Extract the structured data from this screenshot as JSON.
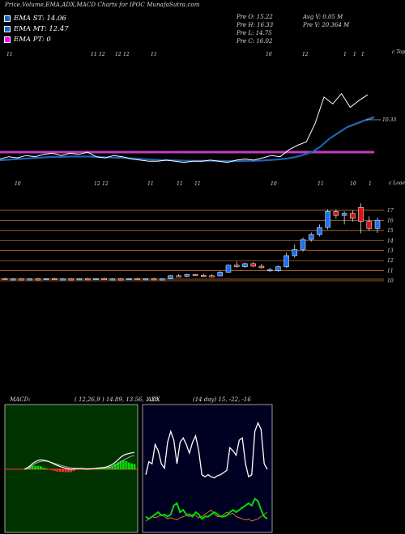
{
  "header": {
    "title": "Price,Volume,EMA,ADX,MACD Charts for IPOC MunafaSutra.com"
  },
  "legend": [
    {
      "label": "EMA ST: 14.06",
      "color": "#1565c0"
    },
    {
      "label": "EMA MT: 12.47",
      "color": "#1565c0"
    },
    {
      "label": "EMA PT: 0",
      "color": "#ff00ff"
    }
  ],
  "stats": {
    "prev_open": "Pre  O: 15.22",
    "prev_high": "Pre  H: 16.33",
    "prev_low": "Pre  L: 14.75",
    "prev_close": "Pre  C: 16.02",
    "avg_volume": "Avg V: 0.05 M",
    "prev_volume": "Pre  V: 20.364  M"
  },
  "chart_data": [
    {
      "type": "line",
      "name": "price-ema-panel",
      "x_tick_labels": [
        "11",
        "11",
        "12",
        "12",
        "12",
        "11",
        "10",
        "12",
        "1",
        "1",
        "1"
      ],
      "right_label": "c Topa",
      "annotation": "10.33",
      "series": [
        {
          "name": "",
          "color": "#ffffff",
          "values": [
            10.4,
            10.6,
            10.5,
            10.7,
            10.6,
            10.8,
            10.9,
            10.7,
            10.9,
            10.8,
            11.0,
            10.6,
            10.5,
            10.7,
            10.6,
            10.4,
            10.3,
            10.2,
            10.2,
            10.3,
            10.2,
            10.1,
            10.2,
            10.2,
            10.3,
            10.2,
            10.1,
            10.3,
            10.4,
            10.3,
            10.5,
            10.7,
            10.6,
            11.2,
            11.6,
            11.9,
            13.5,
            15.8,
            15.2,
            16.1,
            14.9,
            15.5,
            16.0
          ]
        },
        {
          "name": "EMA ST",
          "color": "#1565c0",
          "values": [
            10.3,
            10.35,
            10.4,
            10.45,
            10.5,
            10.55,
            10.6,
            10.6,
            10.62,
            10.62,
            10.62,
            10.58,
            10.55,
            10.52,
            10.5,
            10.45,
            10.4,
            10.35,
            10.32,
            10.3,
            10.28,
            10.25,
            10.25,
            10.25,
            10.25,
            10.24,
            10.23,
            10.24,
            10.25,
            10.26,
            10.3,
            10.36,
            10.42,
            10.55,
            10.75,
            11.0,
            11.5,
            12.2,
            12.7,
            13.2,
            13.5,
            13.8,
            14.06
          ]
        }
      ],
      "horizontal_line": {
        "label": "EMA PT",
        "value": 11.0,
        "color": "#c040c0"
      }
    },
    {
      "type": "candlestick",
      "name": "price-candles",
      "x_tick_labels": [
        "10",
        "12",
        "12",
        "11",
        "11",
        "11",
        "10",
        "11",
        "10",
        "1"
      ],
      "right_label": "c Loaena",
      "y_ticks": [
        17,
        16,
        15,
        14,
        13,
        12,
        11,
        10
      ],
      "candles": [
        {
          "o": 10.22,
          "h": 10.3,
          "l": 10.1,
          "c": 10.18,
          "up": false
        },
        {
          "o": 10.18,
          "h": 10.25,
          "l": 10.1,
          "c": 10.2,
          "up": true
        },
        {
          "o": 10.2,
          "h": 10.26,
          "l": 10.12,
          "c": 10.15,
          "up": false
        },
        {
          "o": 10.15,
          "h": 10.25,
          "l": 10.1,
          "c": 10.2,
          "up": true
        },
        {
          "o": 10.2,
          "h": 10.28,
          "l": 10.12,
          "c": 10.17,
          "up": false
        },
        {
          "o": 10.17,
          "h": 10.25,
          "l": 10.12,
          "c": 10.22,
          "up": true
        },
        {
          "o": 10.22,
          "h": 10.3,
          "l": 10.15,
          "c": 10.18,
          "up": false
        },
        {
          "o": 10.18,
          "h": 10.26,
          "l": 10.12,
          "c": 10.2,
          "up": true
        },
        {
          "o": 10.2,
          "h": 10.28,
          "l": 10.14,
          "c": 10.17,
          "up": false
        },
        {
          "o": 10.17,
          "h": 10.24,
          "l": 10.1,
          "c": 10.21,
          "up": true
        },
        {
          "o": 10.21,
          "h": 10.3,
          "l": 10.15,
          "c": 10.17,
          "up": false
        },
        {
          "o": 10.17,
          "h": 10.26,
          "l": 10.12,
          "c": 10.22,
          "up": true
        },
        {
          "o": 10.22,
          "h": 10.3,
          "l": 10.14,
          "c": 10.18,
          "up": false
        },
        {
          "o": 10.18,
          "h": 10.26,
          "l": 10.12,
          "c": 10.2,
          "up": true
        },
        {
          "o": 10.2,
          "h": 10.28,
          "l": 10.15,
          "c": 10.17,
          "up": false
        },
        {
          "o": 10.17,
          "h": 10.24,
          "l": 10.1,
          "c": 10.22,
          "up": true
        },
        {
          "o": 10.22,
          "h": 10.3,
          "l": 10.15,
          "c": 10.18,
          "up": false
        },
        {
          "o": 10.18,
          "h": 10.26,
          "l": 10.12,
          "c": 10.21,
          "up": true
        },
        {
          "o": 10.21,
          "h": 10.3,
          "l": 10.14,
          "c": 10.17,
          "up": false
        },
        {
          "o": 10.17,
          "h": 10.25,
          "l": 10.1,
          "c": 10.2,
          "up": true
        },
        {
          "o": 10.2,
          "h": 10.55,
          "l": 10.15,
          "c": 10.5,
          "up": true
        },
        {
          "o": 10.5,
          "h": 10.65,
          "l": 10.4,
          "c": 10.45,
          "up": false
        },
        {
          "o": 10.45,
          "h": 10.7,
          "l": 10.35,
          "c": 10.62,
          "up": true
        },
        {
          "o": 10.62,
          "h": 10.7,
          "l": 10.5,
          "c": 10.55,
          "up": false
        },
        {
          "o": 10.55,
          "h": 10.7,
          "l": 10.45,
          "c": 10.5,
          "up": false
        },
        {
          "o": 10.5,
          "h": 10.65,
          "l": 10.4,
          "c": 10.48,
          "up": false
        },
        {
          "o": 10.48,
          "h": 10.95,
          "l": 10.45,
          "c": 10.85,
          "up": true
        },
        {
          "o": 10.85,
          "h": 11.6,
          "l": 10.8,
          "c": 11.55,
          "up": true
        },
        {
          "o": 11.55,
          "h": 11.9,
          "l": 11.3,
          "c": 11.4,
          "up": false
        },
        {
          "o": 11.4,
          "h": 11.8,
          "l": 11.3,
          "c": 11.7,
          "up": true
        },
        {
          "o": 11.7,
          "h": 11.85,
          "l": 11.35,
          "c": 11.45,
          "up": false
        },
        {
          "o": 11.45,
          "h": 11.7,
          "l": 11.2,
          "c": 11.3,
          "up": false
        },
        {
          "o": 11.1,
          "h": 11.3,
          "l": 10.9,
          "c": 11.0,
          "up": true
        },
        {
          "o": 11.0,
          "h": 11.5,
          "l": 10.9,
          "c": 11.4,
          "up": true
        },
        {
          "o": 11.4,
          "h": 12.8,
          "l": 11.3,
          "c": 12.5,
          "up": true
        },
        {
          "o": 12.5,
          "h": 13.6,
          "l": 12.3,
          "c": 13.1,
          "up": true
        },
        {
          "o": 13.1,
          "h": 14.3,
          "l": 12.9,
          "c": 14.1,
          "up": true
        },
        {
          "o": 14.1,
          "h": 14.8,
          "l": 13.9,
          "c": 14.6,
          "up": true
        },
        {
          "o": 14.6,
          "h": 15.6,
          "l": 14.4,
          "c": 15.3,
          "up": true
        },
        {
          "o": 15.3,
          "h": 17.1,
          "l": 15.1,
          "c": 16.9,
          "up": true
        },
        {
          "o": 16.9,
          "h": 17.1,
          "l": 16.2,
          "c": 16.5,
          "up": false
        },
        {
          "o": 16.5,
          "h": 16.9,
          "l": 15.6,
          "c": 16.7,
          "up": true
        },
        {
          "o": 16.7,
          "h": 17.0,
          "l": 15.9,
          "c": 16.2,
          "up": false
        },
        {
          "o": 17.3,
          "h": 17.7,
          "l": 14.7,
          "c": 15.9,
          "up": false
        },
        {
          "o": 15.9,
          "h": 16.4,
          "l": 15.0,
          "c": 15.2,
          "up": false
        },
        {
          "o": 15.2,
          "h": 16.3,
          "l": 14.75,
          "c": 16.02,
          "up": true
        }
      ]
    },
    {
      "type": "line",
      "name": "macd-panel",
      "title": "MACD:",
      "params": "( 12,26,9 ) 14.89,  13.56,  1.33",
      "series": [
        {
          "name": "",
          "color": "#ffffff",
          "values": [
            0,
            0.1,
            0.25,
            0.45,
            0.6,
            0.7,
            0.75,
            0.72,
            0.68,
            0.6,
            0.5,
            0.4,
            0.3,
            0.22,
            0.15,
            0.08,
            0.03,
            0,
            0.02,
            0.05,
            0.06,
            0.05,
            0.03,
            0.02,
            0.03,
            0.05,
            0.08,
            0.1,
            0.12,
            0.15,
            0.2,
            0.28,
            0.38,
            0.55,
            0.75,
            0.95,
            1.1,
            1.2,
            1.25,
            1.3,
            1.33
          ]
        },
        {
          "name": "",
          "color": "#aaaaaa",
          "values": [
            0,
            0.05,
            0.15,
            0.3,
            0.45,
            0.55,
            0.62,
            0.65,
            0.64,
            0.6,
            0.54,
            0.47,
            0.4,
            0.33,
            0.27,
            0.21,
            0.16,
            0.12,
            0.09,
            0.08,
            0.07,
            0.07,
            0.06,
            0.05,
            0.05,
            0.05,
            0.06,
            0.07,
            0.08,
            0.1,
            0.13,
            0.17,
            0.23,
            0.32,
            0.44,
            0.58,
            0.72,
            0.84,
            0.95,
            1.04,
            1.1
          ]
        }
      ],
      "histogram": [
        0,
        0.05,
        0.1,
        0.15,
        0.15,
        0.15,
        0.13,
        0.07,
        0.04,
        0,
        -0.04,
        -0.07,
        -0.1,
        -0.11,
        -0.12,
        -0.13,
        -0.13,
        -0.12,
        -0.07,
        -0.03,
        -0.01,
        -0.02,
        -0.03,
        -0.03,
        -0.02,
        0,
        0.02,
        0.03,
        0.04,
        0.05,
        0.07,
        0.11,
        0.15,
        0.23,
        0.31,
        0.37,
        0.38,
        0.36,
        0.3,
        0.26,
        0.23
      ]
    },
    {
      "type": "line",
      "name": "adx-panel",
      "title": "ADX",
      "params": "(14  day) 15,  -22,  -16",
      "series": [
        {
          "name": "",
          "color": "#ffffff",
          "values": [
            30,
            42,
            40,
            58,
            52,
            40,
            36,
            60,
            70,
            62,
            40,
            60,
            64,
            58,
            50,
            60,
            66,
            52,
            30,
            28,
            30,
            28,
            27,
            29,
            30,
            32,
            34,
            55,
            52,
            48,
            62,
            64,
            40,
            28,
            30,
            70,
            78,
            72,
            40,
            35
          ]
        },
        {
          "name": "",
          "color": "#00dd00",
          "values": [
            12,
            10,
            12,
            14,
            16,
            13,
            14,
            12,
            14,
            22,
            24,
            16,
            18,
            14,
            14,
            12,
            16,
            14,
            10,
            12,
            12,
            14,
            16,
            14,
            12,
            12,
            13,
            16,
            18,
            16,
            18,
            20,
            22,
            24,
            22,
            28,
            26,
            18,
            12,
            10
          ]
        },
        {
          "name": "",
          "color": "#cc7722",
          "values": [
            8,
            10,
            12,
            11,
            12,
            14,
            12,
            10,
            11,
            10,
            9,
            11,
            12,
            13,
            12,
            14,
            13,
            11,
            12,
            14,
            16,
            18,
            14,
            12,
            12,
            14,
            16,
            14,
            15,
            12,
            11,
            10,
            9,
            10,
            8,
            9,
            10,
            12,
            14,
            16
          ]
        }
      ]
    }
  ]
}
